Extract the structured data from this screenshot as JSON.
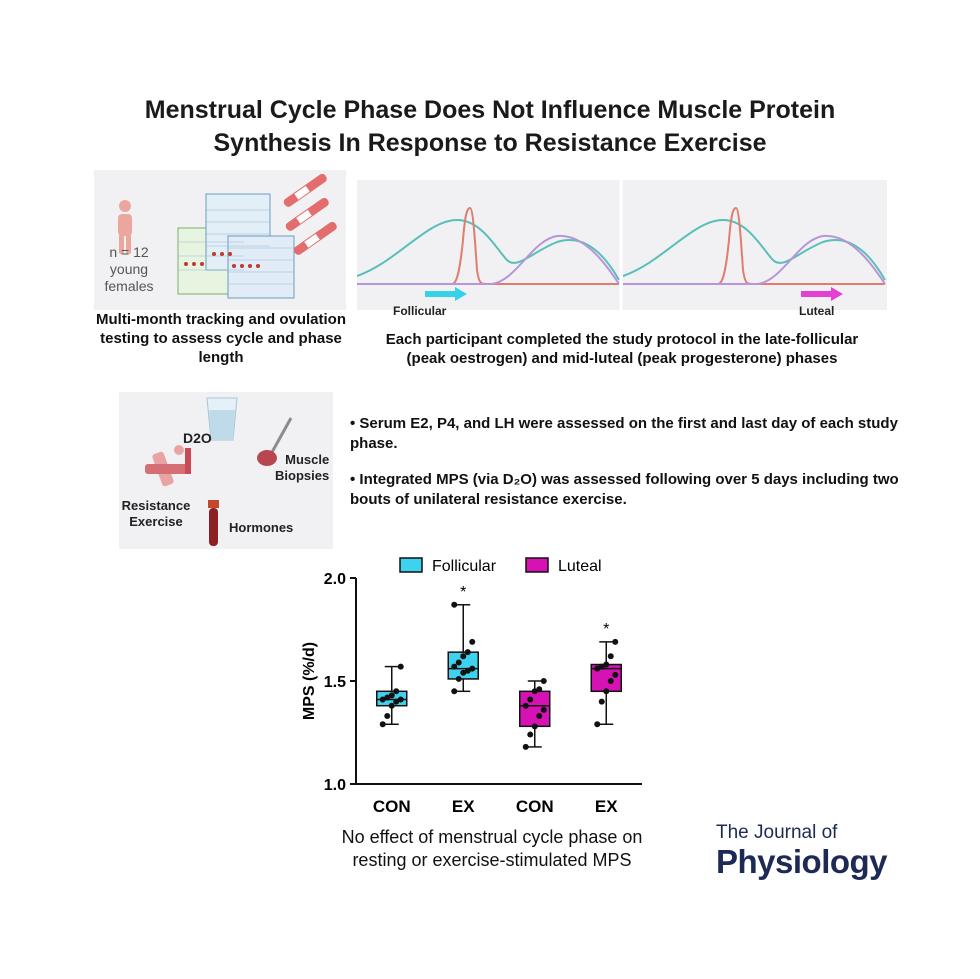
{
  "title_line1": "Menstrual Cycle Phase Does Not Influence Muscle Protein",
  "title_line2": "Synthesis In Response to Resistance Exercise",
  "panel1": {
    "participants": [
      "n = 12",
      "young",
      "females"
    ],
    "caption": "Multi-month tracking and ovulation testing to assess cycle and phase length"
  },
  "panel2": {
    "phase_labels": [
      "Follicular",
      "Luteal"
    ],
    "caption_line1": "Each participant completed the study protocol in the late-follicular",
    "caption_line2": "(peak oestrogen) and mid-luteal (peak progesterone) phases",
    "colors": {
      "oestrogen": "#58bfb8",
      "lh": "#e07e6e",
      "progesterone": "#b894d8",
      "follicular_arrow": "#35d2ea",
      "luteal_arrow": "#e53fd3"
    }
  },
  "panel3": {
    "labels": {
      "d2o": "D2O",
      "muscle1": "Muscle",
      "muscle2": "Biopsies",
      "resist1": "Resistance",
      "resist2": "Exercise",
      "hormones": "Hormones"
    }
  },
  "bullets": [
    "• Serum E2, P4, and LH were assessed on the first and last day of each study phase.",
    "• Integrated MPS (via D₂O) was assessed following over 5 days including two bouts of unilateral resistance exercise."
  ],
  "chart_data": {
    "type": "box",
    "ylabel": "MPS (%/d)",
    "ylim": [
      1.0,
      2.0
    ],
    "yticks": [
      "1.0",
      "1.5",
      "2.0"
    ],
    "categories": [
      "CON",
      "EX",
      "CON",
      "EX"
    ],
    "legend": [
      {
        "name": "Follicular",
        "color": "#3dd3ee"
      },
      {
        "name": "Luteal",
        "color": "#d612b4"
      }
    ],
    "boxes": [
      {
        "category": "CON",
        "group": "Follicular",
        "min": 1.29,
        "q1": 1.38,
        "median": 1.41,
        "q3": 1.45,
        "max": 1.57,
        "points": [
          1.29,
          1.33,
          1.38,
          1.4,
          1.41,
          1.41,
          1.42,
          1.43,
          1.45,
          1.57
        ],
        "sig": ""
      },
      {
        "category": "EX",
        "group": "Follicular",
        "min": 1.45,
        "q1": 1.51,
        "median": 1.56,
        "q3": 1.64,
        "max": 1.87,
        "points": [
          1.45,
          1.51,
          1.54,
          1.55,
          1.56,
          1.57,
          1.59,
          1.62,
          1.64,
          1.69,
          1.87
        ],
        "sig": "*"
      },
      {
        "category": "CON",
        "group": "Luteal",
        "min": 1.18,
        "q1": 1.28,
        "median": 1.38,
        "q3": 1.45,
        "max": 1.5,
        "points": [
          1.18,
          1.24,
          1.28,
          1.33,
          1.36,
          1.38,
          1.41,
          1.45,
          1.46,
          1.5
        ],
        "sig": ""
      },
      {
        "category": "EX",
        "group": "Luteal",
        "min": 1.29,
        "q1": 1.45,
        "median": 1.56,
        "q3": 1.58,
        "max": 1.69,
        "points": [
          1.29,
          1.4,
          1.45,
          1.5,
          1.53,
          1.56,
          1.57,
          1.58,
          1.62,
          1.69
        ],
        "sig": "*"
      }
    ]
  },
  "conclusion_line1": "No effect of menstrual cycle phase on",
  "conclusion_line2": "resting or exercise-stimulated MPS",
  "journal_line1": "The Journal of",
  "journal_line2": "Physiology"
}
